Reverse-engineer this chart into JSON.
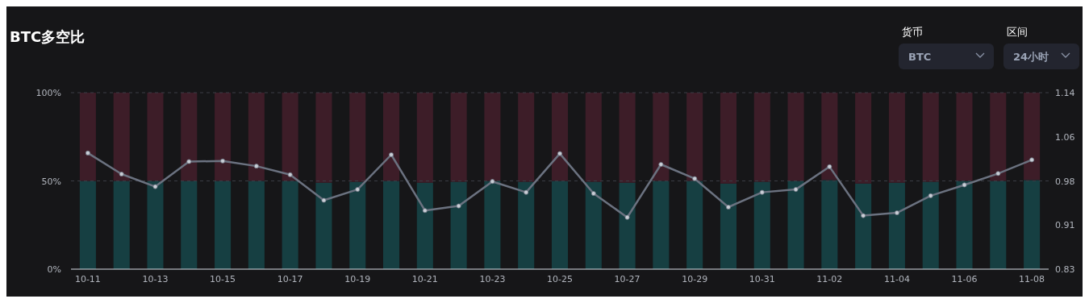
{
  "chart_data": {
    "type": "bar",
    "title": "BTC多空比",
    "stacked": true,
    "categories": [
      "10-11",
      null,
      "10-13",
      null,
      "10-15",
      null,
      "10-17",
      null,
      "10-19",
      null,
      "10-21",
      null,
      "10-23",
      null,
      "10-25",
      null,
      "10-27",
      null,
      "10-29",
      null,
      "10-31",
      null,
      "11-02",
      null,
      "11-04",
      null,
      "11-06",
      null,
      "11-08"
    ],
    "series": [
      {
        "color": "#163f42",
        "values": [
          50,
          50,
          50,
          50,
          50,
          50,
          50,
          49,
          49.5,
          50,
          49,
          49.5,
          50,
          49.5,
          50,
          49.5,
          49,
          50,
          50,
          48.5,
          49.5,
          50,
          50.5,
          48.5,
          49,
          49.5,
          50,
          50,
          50.5
        ]
      },
      {
        "color": "#3d1d28",
        "values": [
          50,
          50,
          50,
          50,
          50,
          50,
          50,
          51,
          50.5,
          50,
          51,
          50.5,
          50,
          50.5,
          50,
          50.5,
          51,
          50,
          50,
          51.5,
          50.5,
          50,
          49.5,
          51.5,
          51,
          50.5,
          50,
          50,
          49.5
        ]
      },
      {
        "type": "line",
        "axis": "y2",
        "color": "#6b7280",
        "marker": "circle",
        "values": [
          1.034,
          0.997,
          0.975,
          1.019,
          1.02,
          1.011,
          0.996,
          0.951,
          0.97,
          1.031,
          0.933,
          0.941,
          0.984,
          0.965,
          1.033,
          0.963,
          0.921,
          1.014,
          0.989,
          0.939,
          0.965,
          0.97,
          1.01,
          0.924,
          0.929,
          0.959,
          0.978,
          0.998,
          1.022
        ]
      }
    ],
    "ylim": [
      0,
      100
    ],
    "yticks": [
      {
        "value": 0,
        "label": "0%"
      },
      {
        "value": 50,
        "label": "50%"
      },
      {
        "value": 100,
        "label": "100%"
      }
    ],
    "y2lim": [
      0.83,
      1.14
    ],
    "y2ticks": [
      0.83,
      {
        "value": 0.9075,
        "label": "0.91"
      },
      {
        "value": 0.985,
        "label": "0.98"
      },
      {
        "value": 1.0625,
        "label": "1.06"
      },
      1.14
    ],
    "grid": "y",
    "annotations": [
      "货币",
      "BTC",
      "区间",
      "24小时"
    ]
  }
}
